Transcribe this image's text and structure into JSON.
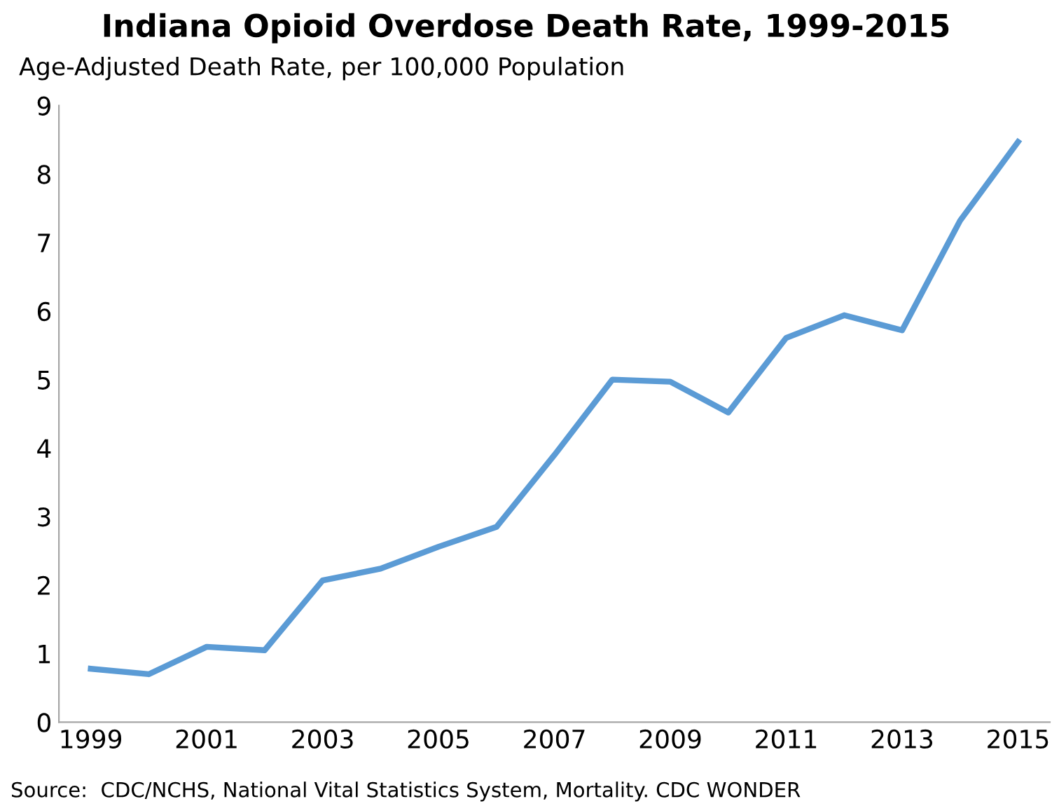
{
  "chart_data": {
    "type": "line",
    "title": "Indiana Opioid Overdose Death Rate, 1999-2015",
    "ylabel": "Age-Adjusted Death Rate, per 100,000 Population",
    "x": [
      1999,
      2000,
      2001,
      2002,
      2003,
      2004,
      2005,
      2006,
      2007,
      2008,
      2009,
      2010,
      2011,
      2012,
      2013,
      2014,
      2015
    ],
    "series": [
      {
        "color": "#5b9bd5",
        "values": [
          0.78,
          0.7,
          1.1,
          1.05,
          2.07,
          2.24,
          2.56,
          2.85,
          3.9,
          5.0,
          4.97,
          4.52,
          5.61,
          5.94,
          5.72,
          7.32,
          8.47
        ]
      }
    ],
    "xlim": [
      1998.45,
      2015.55
    ],
    "xticks": [
      1999,
      2001,
      2003,
      2005,
      2007,
      2009,
      2011,
      2013,
      2015
    ],
    "ylim": [
      0,
      9
    ],
    "yticks": [
      0,
      1,
      2,
      3,
      4,
      5,
      6,
      7,
      8,
      9
    ],
    "grid": false,
    "legend": false,
    "marker": "none",
    "line_style": "solid",
    "annotations": [
      "Source:  CDC/NCHS, National Vital Statistics System, Mortality. CDC WONDER"
    ]
  }
}
